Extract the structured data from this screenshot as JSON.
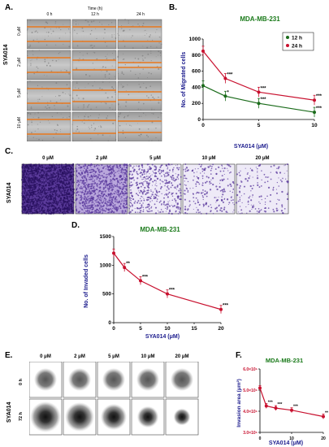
{
  "panels": {
    "A": {
      "label": "A.",
      "time_header": "Time (h)",
      "times": [
        "0 h",
        "12 h",
        "24 h"
      ],
      "row_label": "SYA014",
      "concentrations": [
        "0 μM",
        "2 μM",
        "5 μM",
        "10 μM"
      ]
    },
    "B": {
      "label": "B."
    },
    "C": {
      "label": "C.",
      "row_label": "SYA014",
      "concentrations": [
        "0 μM",
        "2 μM",
        "5 μM",
        "10 μM",
        "20 μM"
      ]
    },
    "D": {
      "label": "D."
    },
    "E": {
      "label": "E.",
      "row_label": "SYA014",
      "times": [
        "0 h",
        "72 h"
      ],
      "concentrations": [
        "0 μM",
        "2 μM",
        "5 μM",
        "10 μM",
        "20 μM"
      ]
    },
    "F": {
      "label": "F."
    }
  },
  "colors": {
    "title_green": "#1a7a1a",
    "axis_blue": "#1a1a8c",
    "red": "#c8102e",
    "green": "#1a6b1a",
    "purple": "#6a3fa8"
  },
  "chart_data": [
    {
      "type": "line",
      "title": "MDA-MB-231",
      "xlabel": "SYA014 (μM)",
      "ylabel": "No. of Migrated cells",
      "x": [
        0,
        2,
        5,
        10
      ],
      "xticks": [
        "0",
        "5",
        "10"
      ],
      "yticks": [
        "0",
        "200",
        "400",
        "600",
        "800",
        "1000"
      ],
      "xlim": [
        0,
        10
      ],
      "ylim": [
        0,
        1000
      ],
      "legend": "top-right",
      "series": [
        {
          "name": "12 h",
          "values": [
            420,
            290,
            200,
            90
          ],
          "color": "#1a6b1a",
          "sig": [
            "",
            "*",
            "***",
            "***"
          ]
        },
        {
          "name": "24 h",
          "values": [
            850,
            510,
            340,
            240
          ],
          "color": "#c8102e",
          "sig": [
            "",
            "***",
            "***",
            "***"
          ]
        }
      ]
    },
    {
      "type": "line",
      "title": "MDA-MB-231",
      "xlabel": "SYA014 (μM)",
      "ylabel": "No. of Invaded cells",
      "x": [
        0,
        2,
        5,
        10,
        20
      ],
      "xticks": [
        "0",
        "5",
        "10",
        "15",
        "20"
      ],
      "yticks": [
        "0",
        "500",
        "1000",
        "1500"
      ],
      "xlim": [
        0,
        20
      ],
      "ylim": [
        0,
        1500
      ],
      "series": [
        {
          "name": "",
          "values": [
            1210,
            960,
            730,
            500,
            230
          ],
          "color": "#c8102e",
          "sig": [
            "",
            "**",
            "***",
            "***",
            "***"
          ]
        }
      ]
    },
    {
      "type": "line",
      "title": "MDA-MB-231",
      "xlabel": "SYA014 (μM)",
      "ylabel": "Invasion area (μm²)",
      "x": [
        0,
        2,
        5,
        10,
        20
      ],
      "xticks": [
        "0",
        "10",
        "20"
      ],
      "yticks": [
        "3.0×10⁵",
        "4.0×10⁵",
        "5.0×10⁵",
        "6.0×10⁵"
      ],
      "xlim": [
        0,
        20
      ],
      "ylim": [
        3.0,
        6.0
      ],
      "series": [
        {
          "name": "",
          "values": [
            5.1,
            4.25,
            4.15,
            4.05,
            3.75
          ],
          "color": "#c8102e",
          "sig": [
            "",
            "***",
            "***",
            "***",
            "***"
          ]
        }
      ]
    }
  ]
}
